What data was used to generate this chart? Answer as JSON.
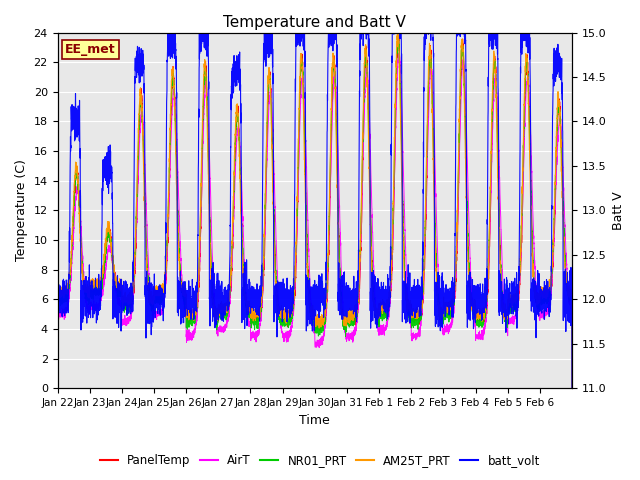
{
  "title": "Temperature and Batt V",
  "xlabel": "Time",
  "ylabel_left": "Temperature (C)",
  "ylabel_right": "Batt V",
  "annotation_text": "EE_met",
  "n_days": 16,
  "ylim_left": [
    0,
    24
  ],
  "ylim_right": [
    11.0,
    15.0
  ],
  "yticks_left": [
    0,
    2,
    4,
    6,
    8,
    10,
    12,
    14,
    16,
    18,
    20,
    22,
    24
  ],
  "yticks_right": [
    11.0,
    11.5,
    12.0,
    12.5,
    13.0,
    13.5,
    14.0,
    14.5,
    15.0
  ],
  "xtick_labels": [
    "Jan 22",
    "Jan 23",
    "Jan 24",
    "Jan 25",
    "Jan 26",
    "Jan 27",
    "Jan 28",
    "Jan 29",
    "Jan 30",
    "Jan 31",
    "Feb 1",
    "Feb 2",
    "Feb 3",
    "Feb 4",
    "Feb 5",
    "Feb 6"
  ],
  "series_colors": {
    "PanelTemp": "#ff0000",
    "AirT": "#ff00ff",
    "NR01_PRT": "#00cc00",
    "AM25T_PRT": "#ff9900",
    "batt_volt": "#0000ff"
  },
  "bg_color": "#e8e8e8",
  "fig_bg": "#ffffff",
  "grid_color": "#ffffff",
  "title_fontsize": 11,
  "label_fontsize": 9,
  "tick_fontsize": 8,
  "legend_fontsize": 8.5,
  "day_peaks": [
    14.5,
    10.5,
    19.5,
    21.0,
    21.5,
    18.5,
    21.0,
    22.0,
    22.0,
    22.5,
    23.5,
    22.5,
    23.0,
    22.0,
    22.0,
    19.0
  ],
  "night_bases": [
    6.0,
    6.5,
    5.5,
    6.0,
    4.5,
    5.0,
    4.5,
    4.5,
    4.0,
    4.5,
    5.0,
    4.5,
    5.0,
    4.5,
    5.5,
    6.0
  ]
}
